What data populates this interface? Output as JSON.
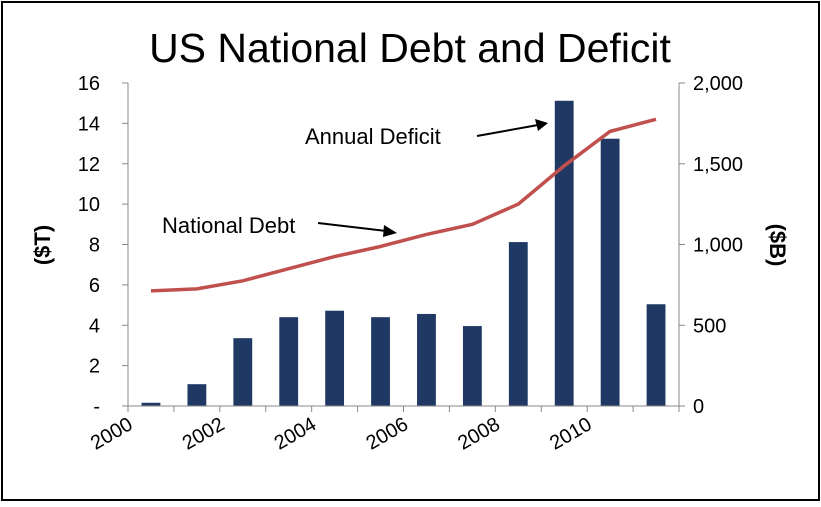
{
  "chart_data": {
    "type": "bar",
    "title": "US National Debt and Deficit",
    "x_tick_labels": [
      "2000",
      "2002",
      "2004",
      "2006",
      "2008",
      "2010"
    ],
    "y_left": {
      "label": "($T)",
      "ticks": [
        "16",
        "14",
        "12",
        "10",
        "8",
        "6",
        "4",
        "2",
        "-"
      ],
      "range": [
        0,
        16
      ]
    },
    "y_right": {
      "label": "($B)",
      "ticks": [
        "2,000",
        "1,500",
        "1,000",
        "500",
        "0"
      ],
      "range": [
        0,
        2000
      ]
    },
    "categories": [
      "2000",
      "2001",
      "2002",
      "2003",
      "2004",
      "2005",
      "2006",
      "2007",
      "2008",
      "2009",
      "2010",
      "2011"
    ],
    "series": [
      {
        "type": "bar",
        "axis": "right",
        "color": "#1f3864",
        "values": [
          20,
          135,
          420,
          550,
          590,
          550,
          570,
          495,
          1015,
          1890,
          1655,
          630
        ]
      },
      {
        "type": "line",
        "axis": "left",
        "color": "#c0504d",
        "values": [
          5.7,
          5.8,
          6.2,
          6.8,
          7.4,
          7.9,
          8.5,
          9.0,
          10.0,
          11.9,
          13.6,
          14.2
        ]
      }
    ],
    "annotations": [
      {
        "text": "National Debt",
        "points_to": "line"
      },
      {
        "text": "Annual Deficit",
        "points_to": "bar"
      }
    ],
    "grid": false,
    "legend": "none"
  }
}
